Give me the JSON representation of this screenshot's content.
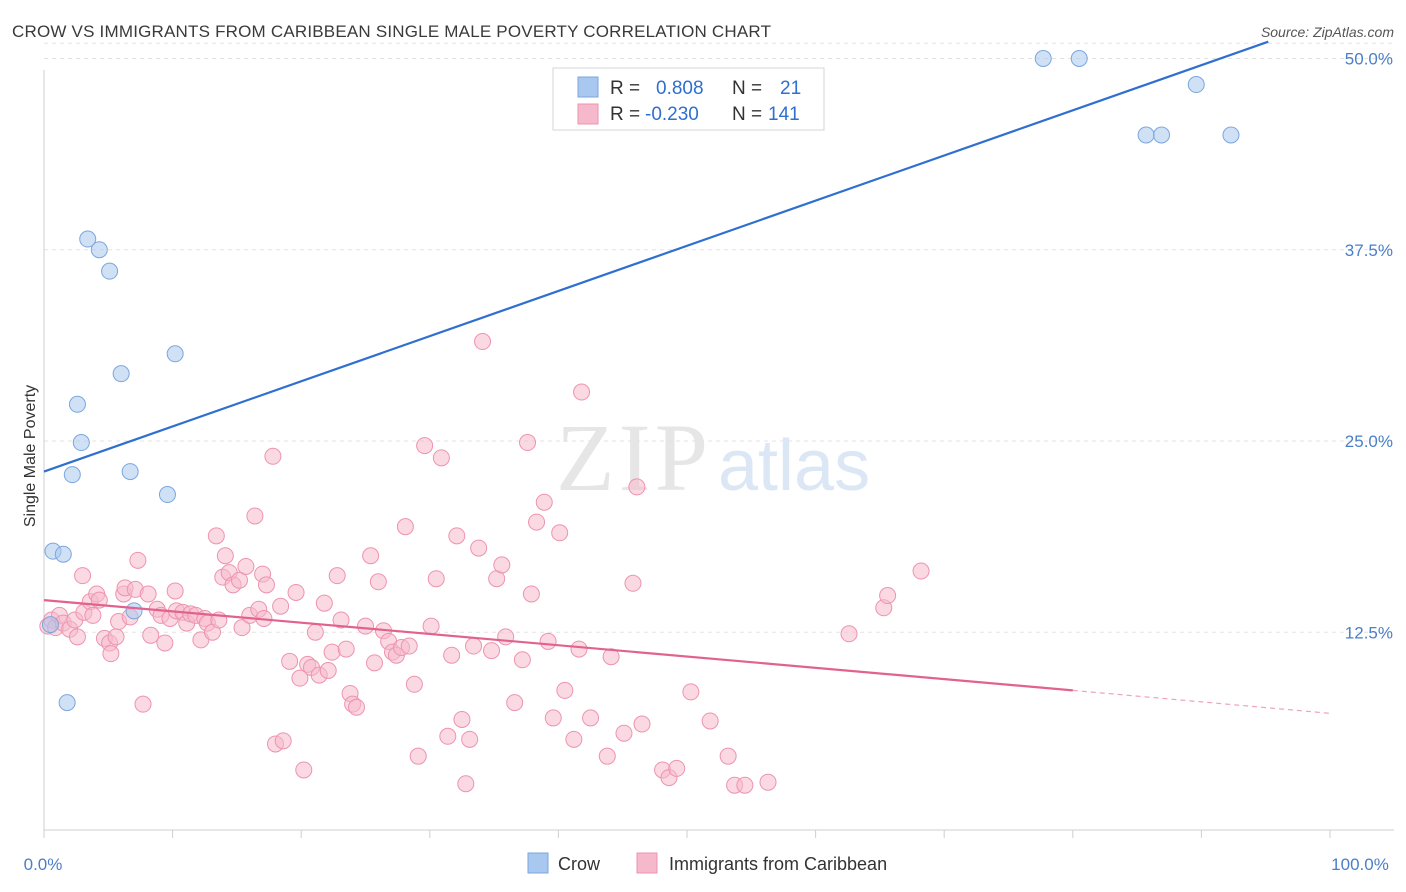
{
  "header": {
    "title": "CROW VS IMMIGRANTS FROM CARIBBEAN SINGLE MALE POVERTY CORRELATION CHART",
    "source": "Source: ZipAtlas.com"
  },
  "watermark": {
    "zip": "ZIP",
    "atlas": "atlas"
  },
  "legend": {
    "r_label": "R =",
    "n_label": "N =",
    "entries": [
      {
        "r": "0.808",
        "n": "21"
      },
      {
        "r": "-0.230",
        "n": "141"
      }
    ]
  },
  "colors": {
    "crow_fill": "#a9c8ef",
    "crow_stroke": "#7aa6de",
    "crow_line": "#2f6fcf",
    "carib_fill": "#f6b9cc",
    "carib_stroke": "#ee93b0",
    "carib_line": "#e2628f",
    "tick_text": "#4a7fc9",
    "grid": "#e3e3e3"
  },
  "chart_data": {
    "type": "scatter",
    "title": "CROW VS IMMIGRANTS FROM CARIBBEAN SINGLE MALE POVERTY CORRELATION CHART",
    "ylabel": "Single Male Poverty",
    "xlabel": "",
    "x_tick_labels": [
      "0.0%",
      "100.0%"
    ],
    "y_tick_labels": [
      "12.5%",
      "25.0%",
      "37.5%",
      "50.0%"
    ],
    "y_ticks": [
      12.5,
      25.0,
      37.5,
      50.0
    ],
    "xlim": [
      0,
      100
    ],
    "ylim": [
      0,
      51
    ],
    "grid": true,
    "legend_placement": "top-center",
    "series": [
      {
        "name": "Crow",
        "r": 0.808,
        "n": 21,
        "points": [
          [
            0.5,
            13.0
          ],
          [
            0.7,
            17.8
          ],
          [
            1.5,
            17.6
          ],
          [
            1.8,
            7.9
          ],
          [
            2.2,
            22.8
          ],
          [
            2.6,
            27.4
          ],
          [
            2.9,
            24.9
          ],
          [
            3.4,
            38.2
          ],
          [
            4.3,
            37.5
          ],
          [
            5.1,
            36.1
          ],
          [
            6.0,
            29.4
          ],
          [
            6.7,
            23.0
          ],
          [
            7.0,
            13.9
          ],
          [
            9.6,
            21.5
          ],
          [
            10.2,
            30.7
          ],
          [
            77.7,
            50.0
          ],
          [
            80.5,
            50.0
          ],
          [
            85.7,
            45.0
          ],
          [
            86.9,
            45.0
          ],
          [
            89.6,
            48.3
          ],
          [
            92.3,
            45.0
          ]
        ],
        "trend": {
          "x": [
            0,
            95.2
          ],
          "y": [
            23.0,
            51.1
          ]
        }
      },
      {
        "name": "Immigrants from Caribbean",
        "r": -0.23,
        "n": 141,
        "points": [
          [
            0.3,
            12.9
          ],
          [
            0.6,
            13.3
          ],
          [
            0.9,
            12.8
          ],
          [
            1.2,
            13.6
          ],
          [
            1.5,
            13.1
          ],
          [
            2.0,
            12.7
          ],
          [
            2.4,
            13.3
          ],
          [
            2.6,
            12.2
          ],
          [
            3.1,
            13.8
          ],
          [
            3.0,
            16.2
          ],
          [
            3.6,
            14.5
          ],
          [
            3.8,
            13.6
          ],
          [
            4.1,
            15.0
          ],
          [
            4.3,
            14.6
          ],
          [
            4.7,
            12.1
          ],
          [
            5.1,
            11.8
          ],
          [
            5.2,
            11.1
          ],
          [
            5.6,
            12.2
          ],
          [
            5.8,
            13.2
          ],
          [
            6.2,
            15.0
          ],
          [
            6.3,
            15.4
          ],
          [
            6.7,
            13.5
          ],
          [
            7.1,
            15.3
          ],
          [
            7.3,
            17.2
          ],
          [
            7.7,
            7.8
          ],
          [
            8.1,
            15.0
          ],
          [
            8.3,
            12.3
          ],
          [
            8.8,
            14.0
          ],
          [
            9.1,
            13.6
          ],
          [
            9.4,
            11.8
          ],
          [
            9.8,
            13.4
          ],
          [
            10.2,
            15.2
          ],
          [
            10.3,
            13.9
          ],
          [
            10.8,
            13.8
          ],
          [
            11.1,
            13.1
          ],
          [
            11.4,
            13.7
          ],
          [
            11.8,
            13.6
          ],
          [
            12.2,
            12.0
          ],
          [
            12.5,
            13.4
          ],
          [
            12.7,
            13.1
          ],
          [
            13.1,
            12.5
          ],
          [
            13.4,
            18.8
          ],
          [
            13.6,
            13.3
          ],
          [
            13.9,
            16.1
          ],
          [
            14.1,
            17.5
          ],
          [
            14.4,
            16.4
          ],
          [
            14.7,
            15.6
          ],
          [
            15.2,
            15.9
          ],
          [
            15.4,
            12.8
          ],
          [
            15.7,
            16.8
          ],
          [
            16.0,
            13.6
          ],
          [
            16.4,
            20.1
          ],
          [
            16.7,
            14.0
          ],
          [
            17.0,
            16.3
          ],
          [
            17.1,
            13.4
          ],
          [
            17.3,
            15.6
          ],
          [
            17.8,
            24.0
          ],
          [
            18.0,
            5.2
          ],
          [
            18.4,
            14.2
          ],
          [
            18.6,
            5.4
          ],
          [
            19.1,
            10.6
          ],
          [
            19.6,
            15.1
          ],
          [
            19.9,
            9.5
          ],
          [
            20.2,
            3.5
          ],
          [
            20.5,
            10.4
          ],
          [
            20.8,
            10.2
          ],
          [
            21.1,
            12.5
          ],
          [
            21.4,
            9.7
          ],
          [
            21.8,
            14.4
          ],
          [
            22.1,
            10.0
          ],
          [
            22.4,
            11.2
          ],
          [
            22.8,
            16.2
          ],
          [
            23.1,
            13.3
          ],
          [
            23.5,
            11.4
          ],
          [
            23.8,
            8.5
          ],
          [
            24.0,
            7.8
          ],
          [
            24.3,
            7.6
          ],
          [
            25.0,
            12.9
          ],
          [
            25.4,
            17.5
          ],
          [
            25.7,
            10.5
          ],
          [
            26.0,
            15.8
          ],
          [
            26.4,
            12.6
          ],
          [
            26.8,
            11.9
          ],
          [
            27.1,
            11.2
          ],
          [
            27.4,
            11.0
          ],
          [
            27.8,
            11.5
          ],
          [
            28.1,
            19.4
          ],
          [
            28.4,
            11.6
          ],
          [
            28.8,
            9.1
          ],
          [
            29.1,
            4.4
          ],
          [
            29.6,
            24.7
          ],
          [
            30.1,
            12.9
          ],
          [
            30.5,
            16.0
          ],
          [
            30.9,
            23.9
          ],
          [
            31.4,
            5.7
          ],
          [
            31.7,
            11.0
          ],
          [
            32.1,
            18.8
          ],
          [
            32.5,
            6.8
          ],
          [
            32.8,
            2.6
          ],
          [
            33.1,
            5.5
          ],
          [
            33.4,
            11.6
          ],
          [
            33.8,
            18.0
          ],
          [
            34.1,
            31.5
          ],
          [
            34.8,
            11.3
          ],
          [
            35.2,
            16.0
          ],
          [
            35.6,
            16.9
          ],
          [
            35.9,
            12.2
          ],
          [
            36.6,
            7.9
          ],
          [
            37.2,
            10.7
          ],
          [
            37.6,
            24.9
          ],
          [
            37.9,
            15.0
          ],
          [
            38.3,
            19.7
          ],
          [
            38.9,
            21.0
          ],
          [
            39.2,
            11.9
          ],
          [
            39.6,
            6.9
          ],
          [
            40.1,
            19.0
          ],
          [
            40.5,
            8.7
          ],
          [
            41.2,
            5.5
          ],
          [
            41.6,
            11.4
          ],
          [
            41.8,
            28.2
          ],
          [
            42.5,
            6.9
          ],
          [
            43.8,
            4.4
          ],
          [
            44.1,
            10.9
          ],
          [
            45.1,
            5.9
          ],
          [
            45.8,
            15.7
          ],
          [
            46.1,
            22.0
          ],
          [
            46.5,
            6.5
          ],
          [
            48.1,
            3.5
          ],
          [
            48.6,
            3.0
          ],
          [
            49.2,
            3.6
          ],
          [
            50.3,
            8.6
          ],
          [
            51.8,
            6.7
          ],
          [
            53.2,
            4.4
          ],
          [
            53.7,
            2.5
          ],
          [
            54.5,
            2.5
          ],
          [
            56.3,
            2.7
          ],
          [
            62.6,
            12.4
          ],
          [
            65.3,
            14.1
          ],
          [
            65.6,
            14.9
          ],
          [
            68.2,
            16.5
          ]
        ],
        "trend": {
          "x": [
            0,
            80.0
          ],
          "y": [
            14.6,
            8.7
          ]
        },
        "trend_extension": {
          "x": [
            80.0,
            100.0
          ],
          "y": [
            8.7,
            7.2
          ]
        }
      }
    ]
  }
}
